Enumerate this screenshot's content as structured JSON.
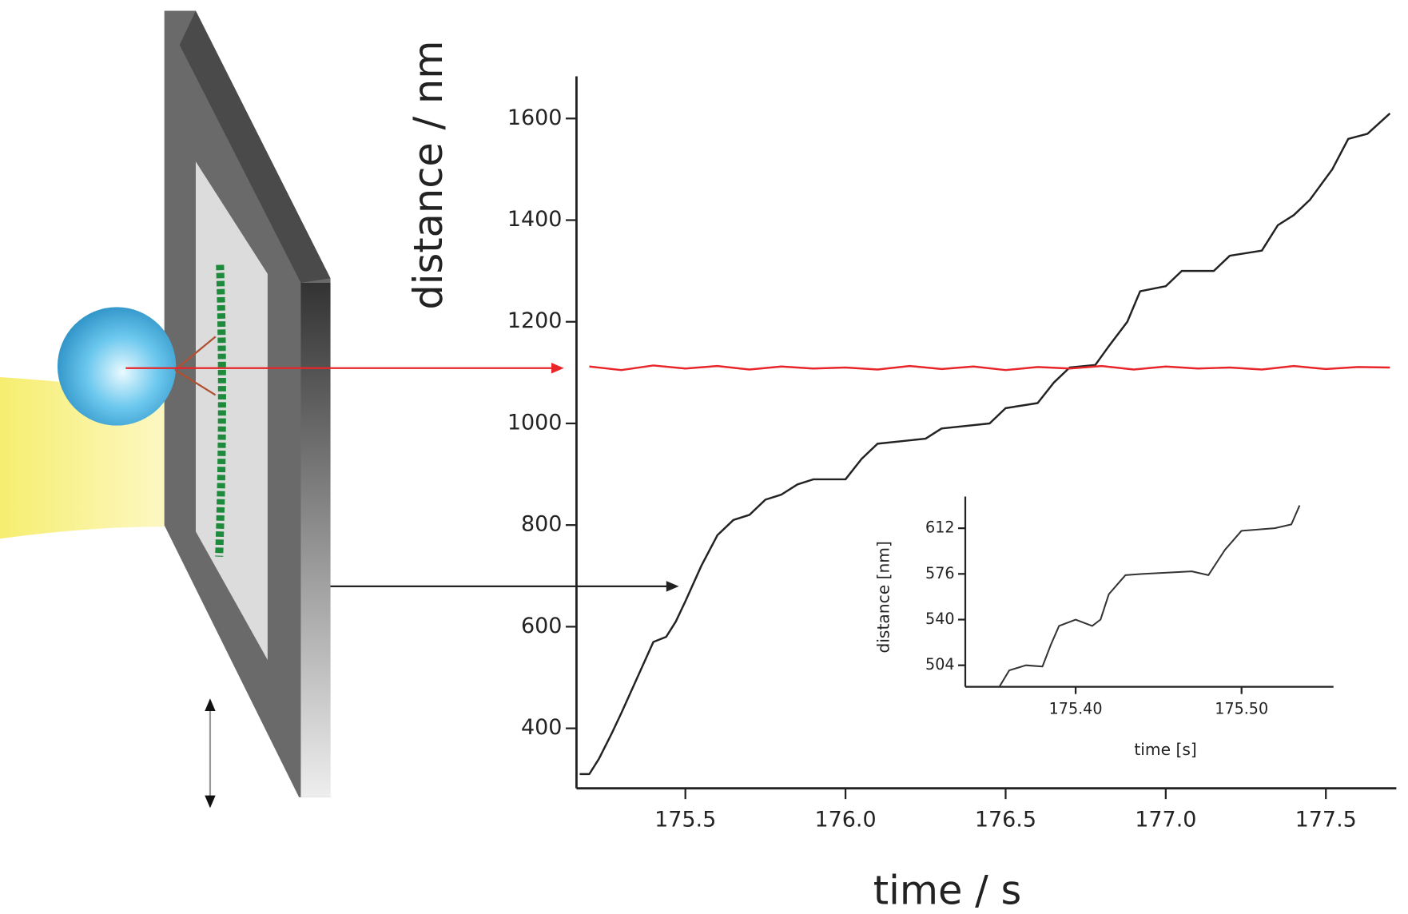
{
  "chart_data": [
    {
      "type": "line",
      "x_label": "time / s",
      "y_label": "distance / nm",
      "xlim": [
        175.16,
        177.72
      ],
      "ylim": [
        282,
        1683
      ],
      "xticks": [
        175.5,
        {
          "value": 176,
          "label": "176.0"
        },
        176.5,
        {
          "value": 177,
          "label": "177.0"
        },
        177.5
      ],
      "yticks": [
        400,
        600,
        800,
        1000,
        1200,
        1400,
        1600
      ],
      "series": [
        {
          "color": "#222222",
          "x": [
            175.17,
            175.2,
            175.23,
            175.27,
            175.3,
            175.35,
            175.4,
            175.44,
            175.47,
            175.5,
            175.55,
            175.6,
            175.65,
            175.7,
            175.75,
            175.8,
            175.85,
            175.9,
            176.0,
            176.05,
            176.1,
            176.25,
            176.3,
            176.45,
            176.5,
            176.6,
            176.65,
            176.7,
            176.78,
            176.82,
            176.88,
            176.92,
            177.0,
            177.05,
            177.15,
            177.2,
            177.3,
            177.35,
            177.4,
            177.45,
            177.52,
            177.57,
            177.63,
            177.7
          ],
          "values": [
            310,
            310,
            340,
            390,
            430,
            500,
            570,
            580,
            610,
            650,
            720,
            780,
            810,
            820,
            850,
            860,
            880,
            890,
            890,
            930,
            960,
            970,
            990,
            1000,
            1030,
            1040,
            1080,
            1110,
            1115,
            1150,
            1200,
            1260,
            1270,
            1300,
            1300,
            1330,
            1340,
            1390,
            1410,
            1440,
            1500,
            1560,
            1570,
            1610
          ]
        },
        {
          "color": "#e8262a",
          "x": [
            175.2,
            175.3,
            175.4,
            175.5,
            175.6,
            175.7,
            175.8,
            175.9,
            176.0,
            176.1,
            176.2,
            176.3,
            176.4,
            176.5,
            176.6,
            176.7,
            176.8,
            176.9,
            177.0,
            177.1,
            177.2,
            177.3,
            177.4,
            177.5,
            177.6,
            177.7
          ],
          "values": [
            1112,
            1105,
            1114,
            1108,
            1113,
            1106,
            1112,
            1108,
            1110,
            1106,
            1113,
            1107,
            1112,
            1105,
            1111,
            1108,
            1113,
            1106,
            1112,
            1108,
            1110,
            1106,
            1113,
            1107,
            1111,
            1110
          ]
        }
      ]
    },
    {
      "type": "line",
      "x_label": "time [s]",
      "y_label": "distance [nm]",
      "xlim": [
        175.3335,
        175.5554
      ],
      "ylim": [
        487,
        637
      ],
      "xticks": [
        {
          "value": 175.4,
          "label": "175.40"
        },
        {
          "value": 175.5,
          "label": "175.50"
        }
      ],
      "yticks": [
        504,
        540,
        576,
        612
      ],
      "series": [
        {
          "color": "#333333",
          "x": [
            175.354,
            175.36,
            175.37,
            175.38,
            175.385,
            175.39,
            175.4,
            175.41,
            175.415,
            175.42,
            175.43,
            175.44,
            175.47,
            175.48,
            175.49,
            175.5,
            175.52,
            175.53,
            175.535
          ],
          "values": [
            487,
            500,
            504,
            503,
            520,
            535,
            540,
            535,
            540,
            560,
            575,
            576,
            578,
            575,
            595,
            610,
            612,
            615,
            630
          ]
        }
      ]
    }
  ]
}
